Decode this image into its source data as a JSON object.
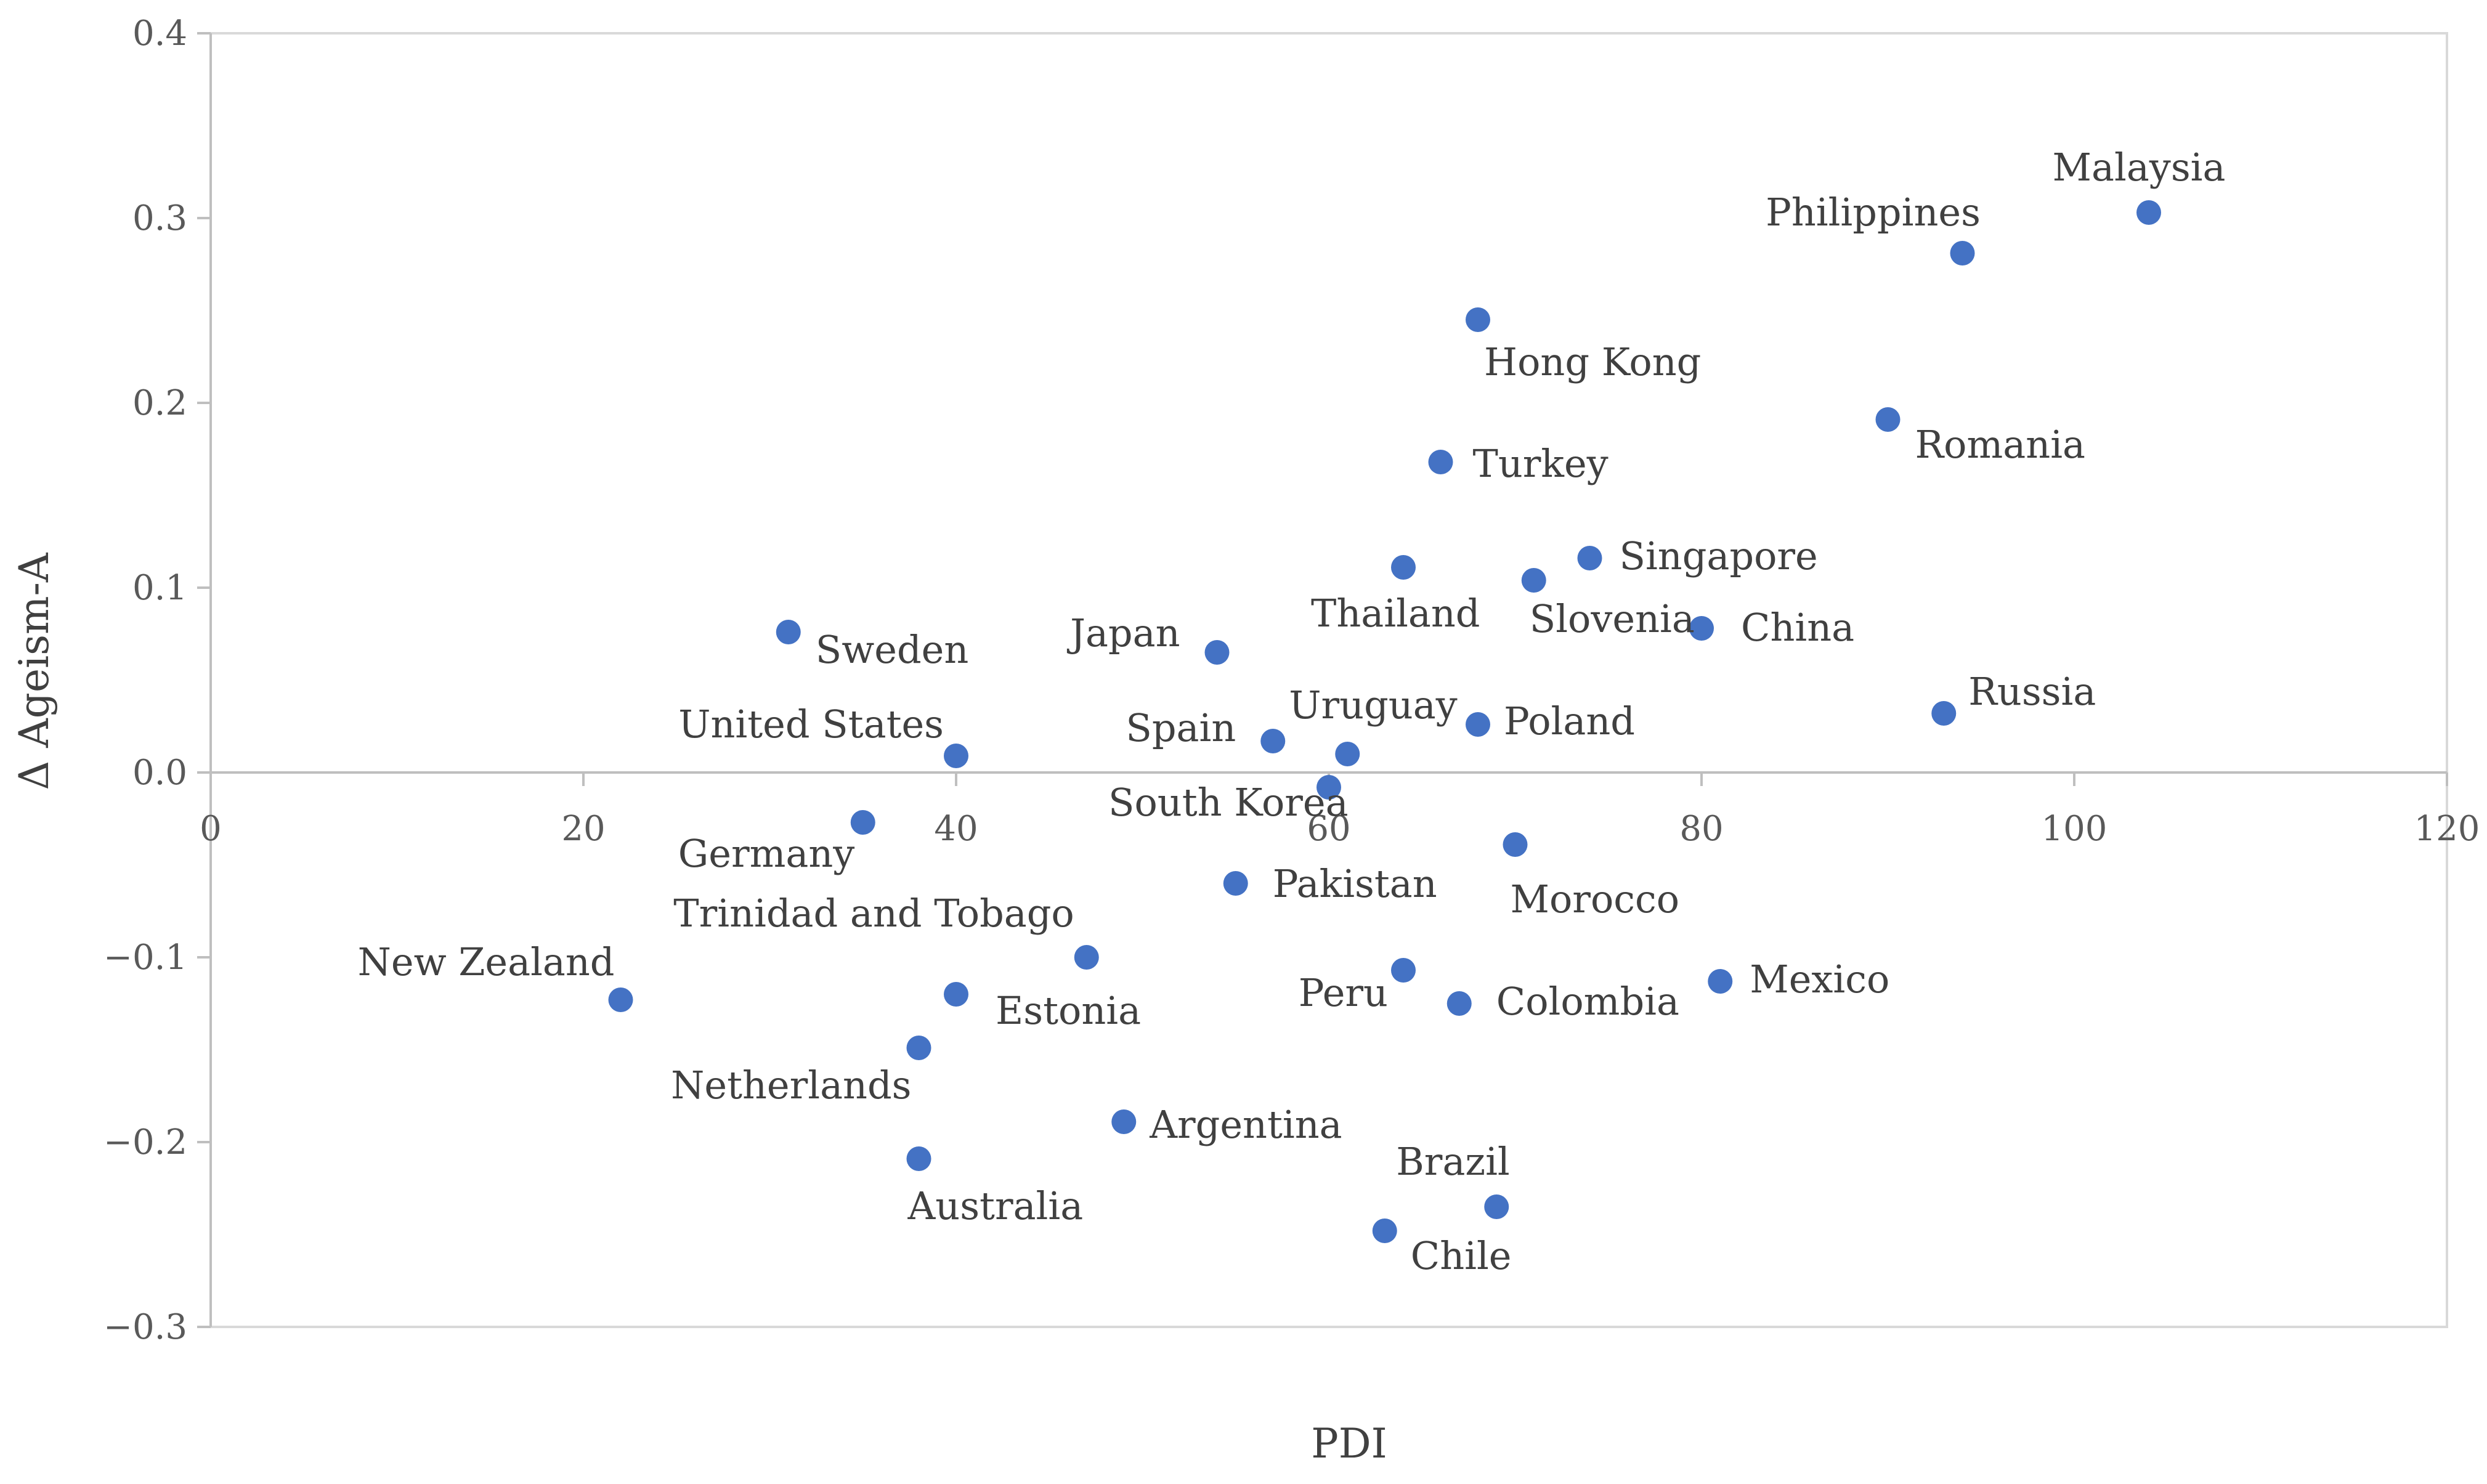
{
  "chart_data": {
    "type": "scatter",
    "title": "",
    "xlabel": "PDI",
    "ylabel": "Δ Ageism-A",
    "xlim": [
      0,
      120
    ],
    "ylim": [
      -0.3,
      0.4
    ],
    "x_ticks": [
      "0",
      "20",
      "40",
      "60",
      "80",
      "100",
      "120"
    ],
    "y_ticks": [
      "0.4",
      "0.3",
      "0.2",
      "0.1",
      "0.0",
      "−0.1",
      "−0.2",
      "−0.3"
    ],
    "grid": false,
    "legend": "none",
    "marker_color": "#4472C4",
    "points": [
      {
        "label": "Malaysia",
        "x": 104,
        "y": 0.303
      },
      {
        "label": "Philippines",
        "x": 94,
        "y": 0.281
      },
      {
        "label": "Hong Kong",
        "x": 68,
        "y": 0.245
      },
      {
        "label": "Romania",
        "x": 90,
        "y": 0.191
      },
      {
        "label": "Turkey",
        "x": 66,
        "y": 0.168
      },
      {
        "label": "Singapore",
        "x": 74,
        "y": 0.116
      },
      {
        "label": "Thailand",
        "x": 64,
        "y": 0.111
      },
      {
        "label": "Slovenia",
        "x": 71,
        "y": 0.104
      },
      {
        "label": "China",
        "x": 80,
        "y": 0.078
      },
      {
        "label": "Sweden",
        "x": 31,
        "y": 0.076
      },
      {
        "label": "Japan",
        "x": 54,
        "y": 0.065
      },
      {
        "label": "Russia",
        "x": 93,
        "y": 0.032
      },
      {
        "label": "Poland",
        "x": 68,
        "y": 0.026
      },
      {
        "label": "Spain",
        "x": 57,
        "y": 0.017
      },
      {
        "label": "Uruguay",
        "x": 61,
        "y": 0.01
      },
      {
        "label": "United States",
        "x": 40,
        "y": 0.009
      },
      {
        "label": "South Korea",
        "x": 60,
        "y": -0.008
      },
      {
        "label": "Germany",
        "x": 35,
        "y": -0.027
      },
      {
        "label": "Morocco",
        "x": 70,
        "y": -0.039
      },
      {
        "label": "Pakistan",
        "x": 55,
        "y": -0.06
      },
      {
        "label": "Trinidad and Tobago",
        "x": 47,
        "y": -0.1
      },
      {
        "label": "Peru",
        "x": 64,
        "y": -0.107
      },
      {
        "label": "Mexico",
        "x": 81,
        "y": -0.113
      },
      {
        "label": "Estonia",
        "x": 40,
        "y": -0.12
      },
      {
        "label": "New Zealand",
        "x": 22,
        "y": -0.123
      },
      {
        "label": "Colombia",
        "x": 67,
        "y": -0.125
      },
      {
        "label": "Netherlands",
        "x": 38,
        "y": -0.149
      },
      {
        "label": "Argentina",
        "x": 49,
        "y": -0.189
      },
      {
        "label": "Australia",
        "x": 38,
        "y": -0.209
      },
      {
        "label": "Brazil",
        "x": 69,
        "y": -0.235
      },
      {
        "label": "Chile",
        "x": 63,
        "y": -0.248
      }
    ]
  }
}
